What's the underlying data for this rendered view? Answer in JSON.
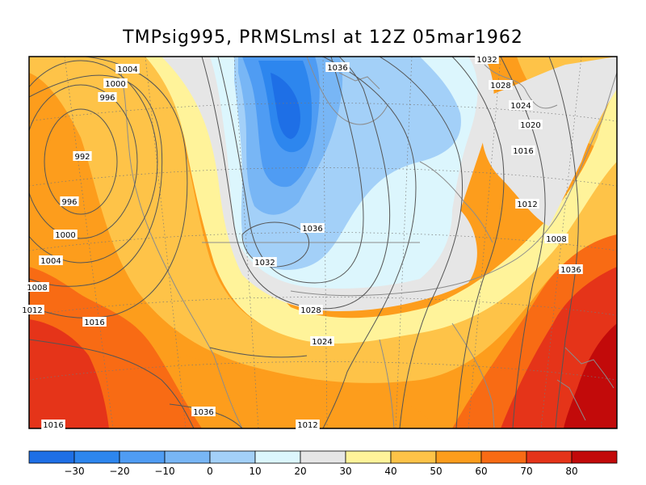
{
  "title": "TMPsig995, PRMSLmsl at 12Z  05mar1962",
  "colorbar": {
    "bins": [
      {
        "color": "#1e6fe6"
      },
      {
        "color": "#2d86ee"
      },
      {
        "color": "#4f9cf3"
      },
      {
        "color": "#78b6f5"
      },
      {
        "color": "#a3d0f8"
      },
      {
        "color": "#dcf6fd"
      },
      {
        "color": "#e6e6e6"
      },
      {
        "color": "#fff39a"
      },
      {
        "color": "#fec348"
      },
      {
        "color": "#fd9d1c"
      },
      {
        "color": "#f86b14"
      },
      {
        "color": "#e53419"
      },
      {
        "color": "#c20a0a"
      }
    ],
    "ticks": [
      "−30",
      "−20",
      "−10",
      "0",
      "10",
      "20",
      "30",
      "40",
      "50",
      "60",
      "70",
      "80"
    ]
  },
  "isobar_labels": [
    "1004",
    "1000",
    "996",
    "992",
    "996",
    "1000",
    "1004",
    "1008",
    "1012",
    "1016",
    "1016",
    "1036",
    "1032",
    "1028",
    "1024",
    "1020",
    "1016",
    "1012",
    "1008",
    "1036",
    "1036",
    "1032",
    "1028",
    "1024",
    "1012",
    "1036"
  ]
}
